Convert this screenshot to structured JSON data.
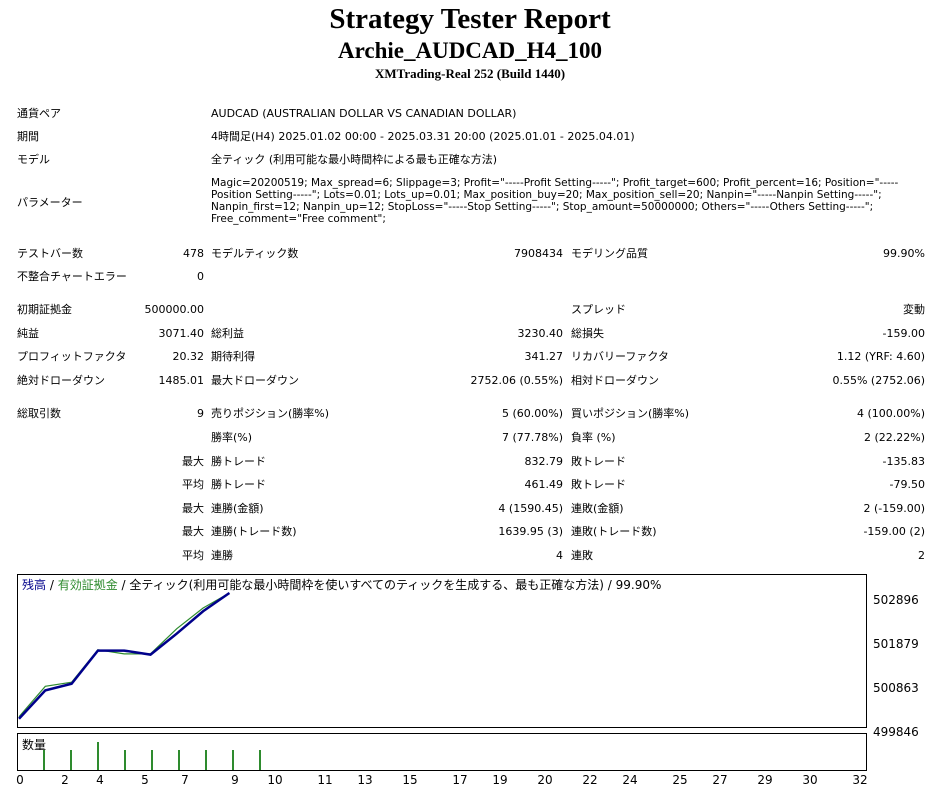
{
  "header": {
    "title": "Strategy Tester Report",
    "subtitle": "Archie_AUDCAD_H4_100",
    "server": "XMTrading-Real 252 (Build 1440)"
  },
  "info": {
    "symbol_label": "通貨ペア",
    "symbol_value": "AUDCAD (AUSTRALIAN DOLLAR VS CANADIAN DOLLAR)",
    "period_label": "期間",
    "period_value": "4時間足(H4) 2025.01.02 00:00 - 2025.03.31 20:00 (2025.01.01 - 2025.04.01)",
    "model_label": "モデル",
    "model_value": "全ティック (利用可能な最小時間枠による最も正確な方法)",
    "params_label": "パラメーター",
    "params_value": "Magic=20200519; Max_spread=6; Slippage=3; Profit=\"-----Profit Setting-----\"; Profit_target=600; Profit_percent=16; Position=\"-----Position Setting-----\"; Lots=0.01; Lots_up=0.01; Max_position_buy=20; Max_position_sell=20; Nanpin=\"-----Nanpin Setting-----\"; Nanpin_first=12; Nanpin_up=12; StopLoss=\"-----Stop Setting-----\"; Stop_amount=50000000; Others=\"-----Others Setting-----\"; Free_comment=\"Free comment\";"
  },
  "stats": {
    "bars_label": "テストバー数",
    "bars": "478",
    "ticks_label": "モデルティック数",
    "ticks": "7908434",
    "quality_label": "モデリング品質",
    "quality": "99.90%",
    "mismatch_label": "不整合チャートエラー",
    "mismatch": "0",
    "deposit_label": "初期証拠金",
    "deposit": "500000.00",
    "spread_label": "スプレッド",
    "spread": "変動",
    "net_label": "純益",
    "net": "3071.40",
    "gross_profit_label": "総利益",
    "gross_profit": "3230.40",
    "gross_loss_label": "総損失",
    "gross_loss": "-159.00",
    "pf_label": "プロフィットファクタ",
    "pf": "20.32",
    "expected_label": "期待利得",
    "expected": "341.27",
    "recovery_label": "リカバリーファクタ",
    "recovery": "1.12 (YRF: 4.60)",
    "abs_dd_label": "絶対ドローダウン",
    "abs_dd": "1485.01",
    "max_dd_label": "最大ドローダウン",
    "max_dd": "2752.06 (0.55%)",
    "rel_dd_label": "相対ドローダウン",
    "rel_dd": "0.55% (2752.06)",
    "trades_label": "総取引数",
    "trades": "9",
    "short_label": "売りポジション(勝率%)",
    "short": "5 (60.00%)",
    "long_label": "買いポジション(勝率%)",
    "long": "4 (100.00%)",
    "winrate_label": "勝率(%)",
    "winrate": "7 (77.78%)",
    "lossrate_label": "負率 (%)",
    "lossrate": "2 (22.22%)",
    "max_pre": "最大",
    "avg_pre": "平均",
    "win_trade_label": "勝トレード",
    "loss_trade_label": "敗トレード",
    "max_win": "832.79",
    "max_loss": "-135.83",
    "avg_win": "461.49",
    "avg_loss": "-79.50",
    "cons_win_amt_label": "連勝(金額)",
    "cons_win_amt": "4 (1590.45)",
    "cons_loss_amt_label": "連敗(金額)",
    "cons_loss_amt": "2 (-159.00)",
    "cons_win_cnt_label": "連勝(トレード数)",
    "cons_win_cnt": "1639.95 (3)",
    "cons_loss_cnt_label": "連敗(トレード数)",
    "cons_loss_cnt": "-159.00 (2)",
    "avg_cons_win_label": "連勝",
    "avg_cons_win": "4",
    "avg_cons_loss_label": "連敗",
    "avg_cons_loss": "2"
  },
  "chart_data": {
    "type": "line",
    "legend": {
      "balance": "残高",
      "sep": " / ",
      "equity": "有効証拠金",
      "rest": " / 全ティック(利用可能な最小時間枠を使いすべてのティックを生成する、最も正確な方法) / 99.90%"
    },
    "y_ticks": [
      "502896",
      "501879",
      "500863",
      "499846"
    ],
    "x_ticks": [
      "0",
      "2",
      "4",
      "5",
      "7",
      "9",
      "10",
      "11",
      "13",
      "15",
      "17",
      "19",
      "20",
      "22",
      "24",
      "25",
      "27",
      "29",
      "30",
      "32"
    ],
    "ylim": [
      499846,
      503100
    ],
    "xlim": [
      0,
      32
    ],
    "series": [
      {
        "name": "残高",
        "color": "#00008b",
        "x": [
          0,
          1,
          2,
          3,
          4,
          5,
          6,
          7,
          8
        ],
        "y": [
          500000,
          500700,
          500863,
          501680,
          501680,
          501580,
          502100,
          502650,
          503100
        ]
      },
      {
        "name": "有効証拠金",
        "color": "#2e8b2e",
        "x": [
          0,
          1,
          2,
          3,
          4,
          5,
          6,
          7,
          8
        ],
        "y": [
          500050,
          500800,
          500900,
          501700,
          501600,
          501600,
          502220,
          502730,
          503100
        ]
      }
    ],
    "volume_label": "数量",
    "volume_x": [
      1,
      2,
      3,
      4,
      5,
      6,
      7,
      8,
      9
    ],
    "volume": [
      1,
      1,
      2,
      1,
      1,
      1,
      1,
      1,
      1
    ]
  },
  "colors": {
    "balance": "#00008b",
    "equity": "#2e8b2e",
    "volume": "#2e8b2e"
  }
}
